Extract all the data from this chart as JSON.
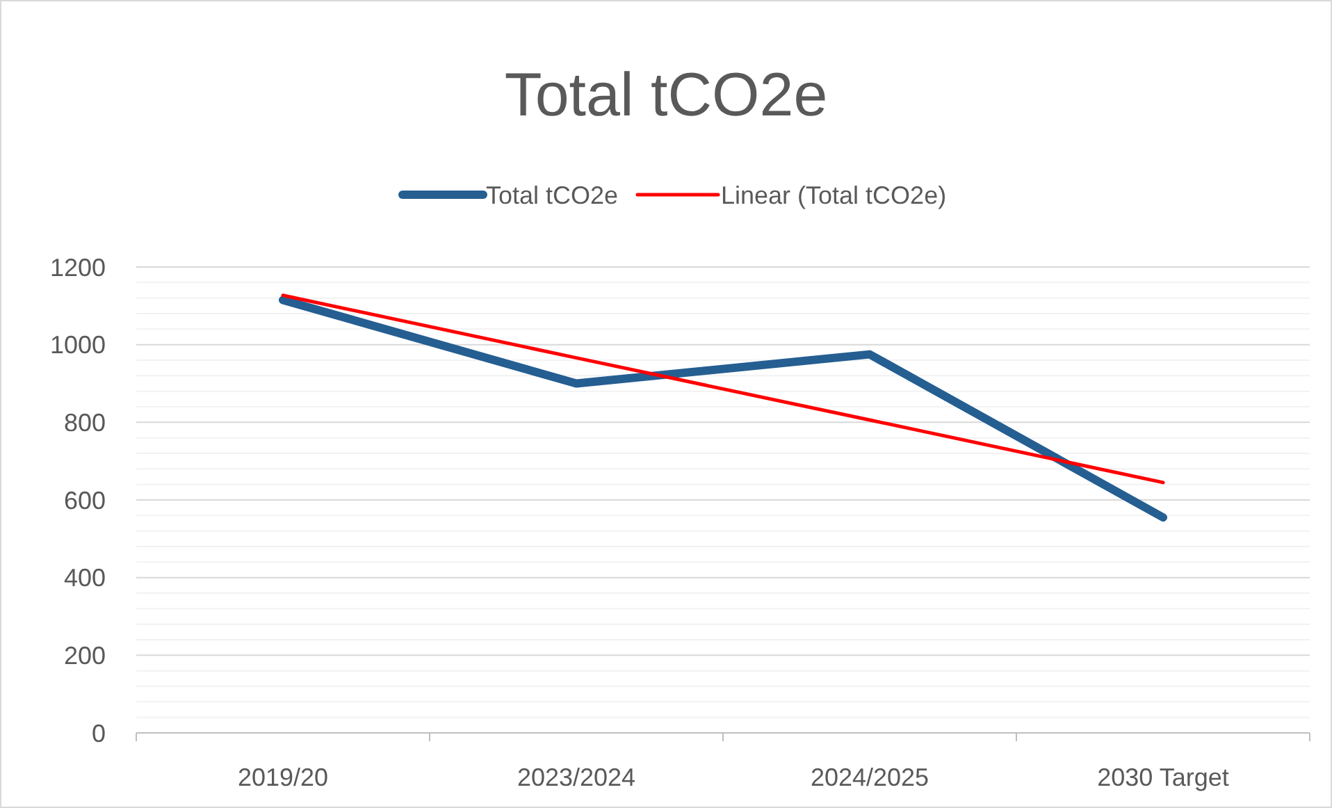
{
  "chart_data": {
    "type": "line",
    "title": "Total tCO2e",
    "categories": [
      "2019/20",
      "2023/2024",
      "2024/2025",
      "2030 Target"
    ],
    "series": [
      {
        "name": "Total tCO2e",
        "color": "#255e91",
        "values": [
          1115,
          900,
          975,
          555
        ]
      },
      {
        "name": "Linear (Total tCO2e)",
        "color": "#ff0000",
        "values": [
          1127,
          966,
          806,
          645
        ]
      }
    ],
    "ylim": [
      0,
      1200
    ],
    "yticks": [
      0,
      {
        "value": 40,
        "label": null
      },
      {
        "value": 80,
        "label": null
      },
      {
        "value": 120,
        "label": null
      },
      {
        "value": 160,
        "label": null
      },
      200,
      {
        "value": 240,
        "label": null
      },
      {
        "value": 280,
        "label": null
      },
      {
        "value": 320,
        "label": null
      },
      {
        "value": 360,
        "label": null
      },
      400,
      {
        "value": 440,
        "label": null
      },
      {
        "value": 480,
        "label": null
      },
      {
        "value": 520,
        "label": null
      },
      {
        "value": 560,
        "label": null
      },
      600,
      {
        "value": 640,
        "label": null
      },
      {
        "value": 680,
        "label": null
      },
      {
        "value": 720,
        "label": null
      },
      {
        "value": 760,
        "label": null
      },
      800,
      {
        "value": 840,
        "label": null
      },
      {
        "value": 880,
        "label": null
      },
      {
        "value": 920,
        "label": null
      },
      {
        "value": 960,
        "label": null
      },
      1000,
      {
        "value": 1040,
        "label": null
      },
      {
        "value": 1080,
        "label": null
      },
      {
        "value": 1120,
        "label": null
      },
      {
        "value": 1160,
        "label": null
      },
      1200
    ],
    "grid": "y",
    "legend": "top",
    "marker": "none",
    "line_style": "solid"
  }
}
